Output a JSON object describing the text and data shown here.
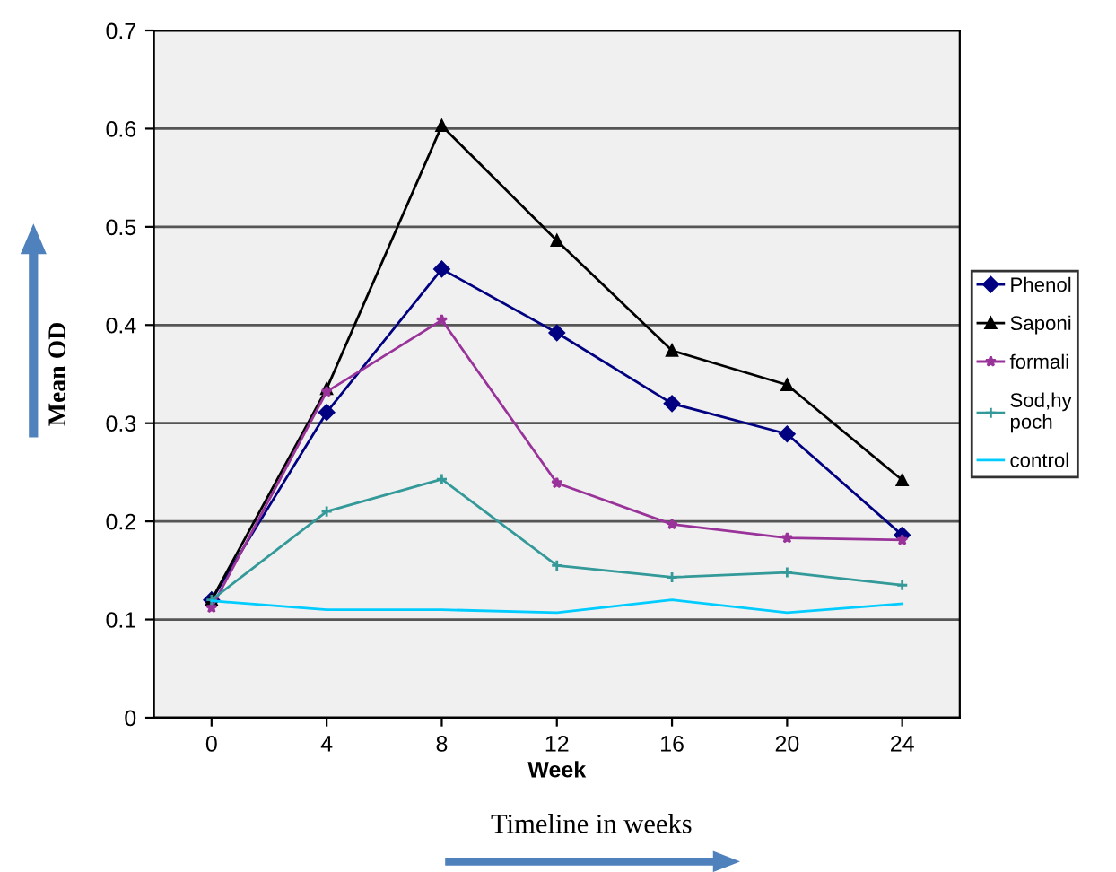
{
  "chart_data": {
    "type": "line",
    "xlabel": "Week",
    "ylabel": "Mean OD",
    "categories": [
      "0",
      "4",
      "8",
      "12",
      "16",
      "20",
      "24"
    ],
    "series": [
      {
        "name": "Phenol",
        "color": "#000080",
        "marker": "diamond",
        "values": [
          0.12,
          0.311,
          0.457,
          0.392,
          0.32,
          0.289,
          0.186
        ]
      },
      {
        "name": "Saponi",
        "color": "#000000",
        "marker": "triangle",
        "values": [
          0.12,
          0.335,
          0.603,
          0.486,
          0.374,
          0.339,
          0.242
        ]
      },
      {
        "name": "formali",
        "color": "#993399",
        "marker": "star",
        "values": [
          0.112,
          0.332,
          0.405,
          0.239,
          0.197,
          0.183,
          0.181
        ]
      },
      {
        "name": "Sod,hy\npoch",
        "color": "#339999",
        "marker": "cross",
        "values": [
          0.12,
          0.21,
          0.243,
          0.155,
          0.143,
          0.148,
          0.135
        ]
      },
      {
        "name": "control",
        "color": "#00ccff",
        "marker": "none",
        "values": [
          0.119,
          0.11,
          0.11,
          0.107,
          0.12,
          0.107,
          0.116
        ]
      }
    ],
    "ylim": [
      0,
      0.7
    ],
    "yticks": [
      0,
      0.1,
      0.2,
      0.3,
      0.4,
      0.5,
      0.6,
      0.7
    ],
    "grid": "y",
    "legend": "right",
    "line_style": "solid",
    "annotations": [
      "Timeline in weeks"
    ]
  }
}
